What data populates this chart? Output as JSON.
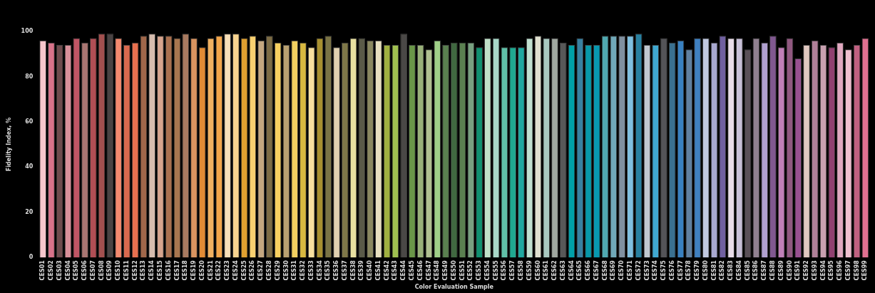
{
  "chart_data": {
    "type": "bar",
    "xlabel": "Color Evaluation Sample",
    "ylabel": "Fidelity Index, %",
    "categories": [
      "CES01",
      "CES02",
      "CES03",
      "CES04",
      "CES05",
      "CES06",
      "CES07",
      "CES08",
      "CES09",
      "CES10",
      "CES11",
      "CES12",
      "CES13",
      "CES14",
      "CES15",
      "CES16",
      "CES17",
      "CES18",
      "CES19",
      "CES20",
      "CES21",
      "CES22",
      "CES23",
      "CES24",
      "CES25",
      "CES26",
      "CES27",
      "CES28",
      "CES29",
      "CES30",
      "CES31",
      "CES32",
      "CES33",
      "CES34",
      "CES35",
      "CES36",
      "CES37",
      "CES38",
      "CES39",
      "CES40",
      "CES41",
      "CES42",
      "CES43",
      "CES44",
      "CES45",
      "CES46",
      "CES47",
      "CES48",
      "CES49",
      "CES50",
      "CES51",
      "CES52",
      "CES53",
      "CES54",
      "CES55",
      "CES56",
      "CES57",
      "CES58",
      "CES59",
      "CES60",
      "CES61",
      "CES62",
      "CES63",
      "CES64",
      "CES65",
      "CES66",
      "CES67",
      "CES68",
      "CES69",
      "CES70",
      "CES71",
      "CES72",
      "CES73",
      "CES74",
      "CES75",
      "CES76",
      "CES77",
      "CES78",
      "CES79",
      "CES80",
      "CES81",
      "CES82",
      "CES83",
      "CES84",
      "CES85",
      "CES86",
      "CES87",
      "CES88",
      "CES89",
      "CES90",
      "CES91",
      "CES92",
      "CES93",
      "CES94",
      "CES95",
      "CES96",
      "CES97",
      "CES98",
      "CES99"
    ],
    "values": [
      96,
      95,
      94,
      94,
      97,
      95,
      97,
      99,
      99,
      97,
      94,
      95,
      98,
      99,
      98,
      98,
      97,
      99,
      97,
      93,
      97,
      98,
      99,
      99,
      97,
      98,
      96,
      98,
      95,
      94,
      96,
      95,
      93,
      97,
      98,
      93,
      95,
      97,
      97,
      96,
      96,
      94,
      94,
      99,
      94,
      94,
      92,
      96,
      94,
      95,
      95,
      95,
      93,
      97,
      97,
      93,
      93,
      93,
      97,
      98,
      97,
      97,
      95,
      94,
      97,
      94,
      94,
      98,
      98,
      98,
      98,
      99,
      94,
      94,
      97,
      95,
      96,
      92,
      97,
      97,
      95,
      98,
      97,
      97,
      92,
      97,
      95,
      98,
      93,
      97,
      88,
      94,
      96,
      94,
      93,
      95,
      92,
      94,
      97
    ],
    "colors": [
      "#f7c6cc",
      "#d8738a",
      "#6e4b4d",
      "#d9909a",
      "#c05565",
      "#a97672",
      "#b04e55",
      "#a3504f",
      "#4a4343",
      "#f48a6f",
      "#d9694e",
      "#e8704f",
      "#a0674a",
      "#d6bcae",
      "#d6a48e",
      "#a9704f",
      "#a8764f",
      "#a87a60",
      "#d99460",
      "#e08a35",
      "#f0b060",
      "#f2a54a",
      "#f8dfb8",
      "#f8d490",
      "#e0a030",
      "#f8d070",
      "#c4a780",
      "#7d6c45",
      "#f8d060",
      "#b8a070",
      "#f2d060",
      "#d8b840",
      "#f8e0a0",
      "#a89030",
      "#7a7345",
      "#e0d0b0",
      "#7e7748",
      "#e8e0a0",
      "#5a5a48",
      "#8a8860",
      "#e8e0c0",
      "#a0b040",
      "#a0c050",
      "#4a4846",
      "#6a9648",
      "#98b078",
      "#b0c090",
      "#a0d088",
      "#5a8050",
      "#406840",
      "#5a8050",
      "#78a080",
      "#109070",
      "#c0e0c8",
      "#a8d8c8",
      "#60c0a8",
      "#20a890",
      "#20a8a0",
      "#c0e0d0",
      "#e0e0d0",
      "#a8c8c0",
      "#a0a8a0",
      "#585858",
      "#00a0a8",
      "#3880a0",
      "#0898a8",
      "#0898b0",
      "#50a8b0",
      "#70a8b8",
      "#8090a0",
      "#80c0e0",
      "#2880a0",
      "#c0c8d0",
      "#40a8d0",
      "#545458",
      "#3a7090",
      "#3880c0",
      "#6080a0",
      "#4080c0",
      "#c0c8e0",
      "#a8a8d0",
      "#7060a0",
      "#e8dce8",
      "#c8c0d8",
      "#5a5058",
      "#908090",
      "#b0a0d0",
      "#805890",
      "#c080b8",
      "#905880",
      "#985090",
      "#e0c8c0",
      "#b08098",
      "#c8a0b0",
      "#904070",
      "#e0a8c0",
      "#f0c0d0",
      "#c06080",
      "#e07090"
    ],
    "ylim": [
      0,
      100
    ],
    "yticks": [
      0,
      20,
      40,
      60,
      80,
      100
    ],
    "grid": false,
    "legend": false
  }
}
